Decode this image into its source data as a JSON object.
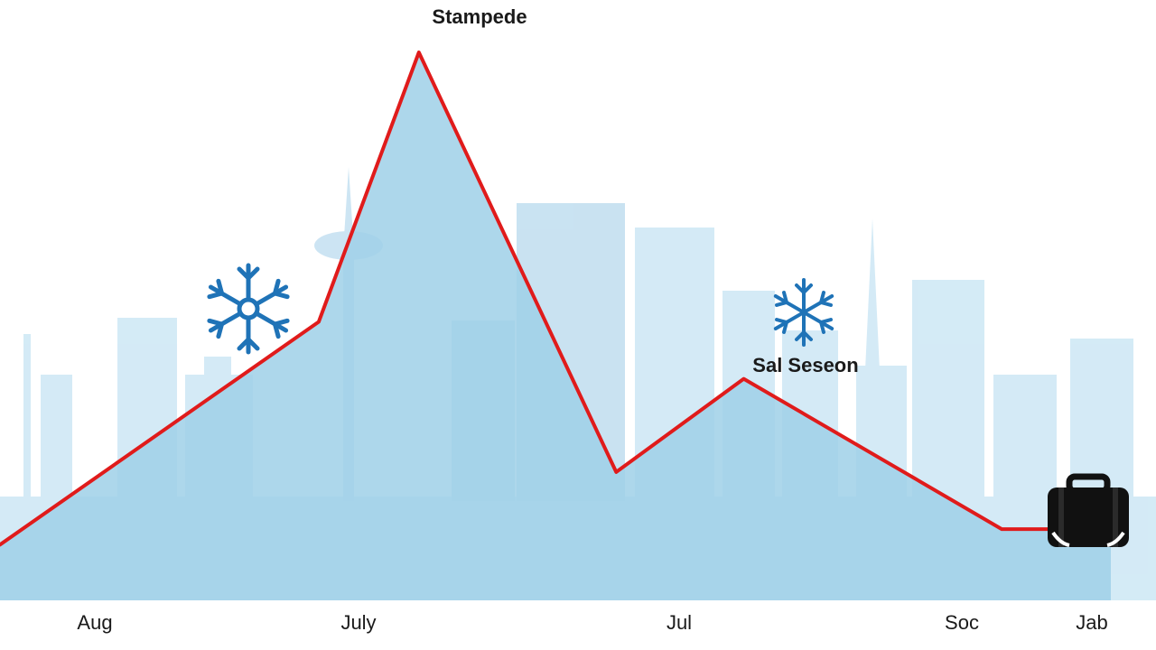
{
  "chart_data": {
    "type": "line",
    "title": "Stampede",
    "xlabel": "",
    "ylabel": "",
    "categories": [
      "Aug",
      "July",
      "Jul",
      "Soc",
      "Jab"
    ],
    "tick_labels": [
      "Aug",
      "July",
      "Jul",
      "Soc",
      "Jab"
    ],
    "grid": false,
    "legend": "none",
    "series": [
      {
        "values": [
          {
            "x": 0.0,
            "y": 5
          },
          {
            "x": 1.05,
            "y": 48
          },
          {
            "x": 1.38,
            "y": 100
          },
          {
            "x": 2.03,
            "y": 19
          },
          {
            "x": 2.45,
            "y": 37
          },
          {
            "x": 3.3,
            "y": 8
          },
          {
            "x": 3.6,
            "y": 8
          }
        ]
      }
    ],
    "annotations": [
      {
        "text": "Sal Seseon"
      }
    ],
    "icons": [
      "snowflake-icon",
      "snowflake-icon",
      "suitcase-icon"
    ],
    "colors": {
      "line": "#e01b1b",
      "area": "#9fd0e8",
      "skyline": "#bfe0f1",
      "icon": "#1f73b7",
      "suitcase": "#111111"
    }
  }
}
